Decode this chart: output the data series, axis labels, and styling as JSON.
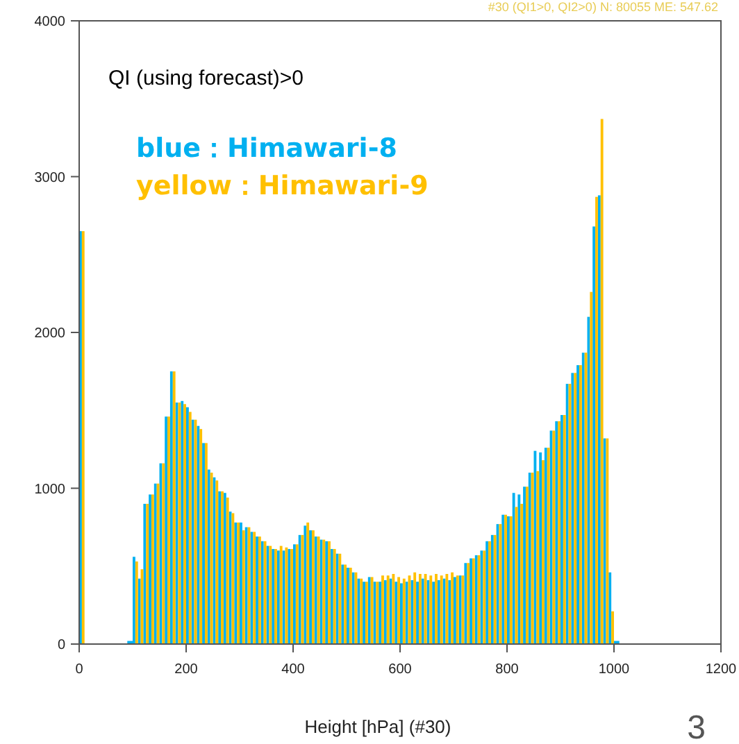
{
  "chart_data": {
    "type": "histogram",
    "xlabel": "Height [hPa] (#30)",
    "annotations": [
      "QI (using forecast)>0",
      "#30 (QI1>0, QI2>0) N: 80055 ME: 547.62",
      "3"
    ],
    "bins": [
      0,
      10,
      20,
      30,
      40,
      50,
      60,
      70,
      80,
      90,
      100,
      110,
      120,
      130,
      140,
      150,
      160,
      170,
      180,
      190,
      200,
      210,
      220,
      230,
      240,
      250,
      260,
      270,
      280,
      290,
      300,
      310,
      320,
      330,
      340,
      350,
      360,
      370,
      380,
      390,
      400,
      410,
      420,
      430,
      440,
      450,
      460,
      470,
      480,
      490,
      500,
      510,
      520,
      530,
      540,
      550,
      560,
      570,
      580,
      590,
      600,
      610,
      620,
      630,
      640,
      650,
      660,
      670,
      680,
      690,
      700,
      710,
      720,
      730,
      740,
      750,
      760,
      770,
      780,
      790,
      800,
      810,
      820,
      830,
      840,
      850,
      860,
      870,
      880,
      890,
      900,
      910,
      920,
      930,
      940,
      950,
      960,
      970,
      980,
      990,
      1000,
      1010
    ],
    "series": [
      {
        "name": "blue：Himawari-8",
        "color": "#00b0f0",
        "values": [
          2650,
          0,
          0,
          0,
          0,
          0,
          0,
          0,
          0,
          20,
          560,
          420,
          900,
          960,
          1030,
          1160,
          1460,
          1750,
          1550,
          1560,
          1520,
          1440,
          1400,
          1290,
          1120,
          1070,
          980,
          970,
          850,
          780,
          780,
          750,
          720,
          690,
          660,
          630,
          610,
          600,
          600,
          610,
          640,
          700,
          760,
          730,
          690,
          670,
          660,
          610,
          580,
          510,
          490,
          460,
          420,
          400,
          430,
          400,
          400,
          410,
          420,
          400,
          390,
          400,
          410,
          400,
          420,
          410,
          400,
          410,
          420,
          410,
          430,
          440,
          520,
          550,
          570,
          600,
          660,
          700,
          770,
          830,
          820,
          970,
          960,
          1010,
          1100,
          1240,
          1230,
          1260,
          1370,
          1430,
          1470,
          1670,
          1740,
          1790,
          1870,
          2100,
          2680,
          2880,
          1320,
          460,
          20
        ]
      },
      {
        "name": "yellow：Himawari-9",
        "color": "#ffc000",
        "values": [
          2650,
          0,
          0,
          0,
          0,
          0,
          0,
          0,
          0,
          0,
          530,
          480,
          900,
          960,
          1030,
          1160,
          1460,
          1750,
          1550,
          1540,
          1490,
          1440,
          1380,
          1290,
          1100,
          1050,
          980,
          940,
          840,
          780,
          730,
          750,
          720,
          690,
          660,
          630,
          610,
          630,
          620,
          610,
          640,
          700,
          780,
          730,
          690,
          670,
          660,
          610,
          580,
          510,
          490,
          460,
          420,
          400,
          430,
          400,
          440,
          440,
          450,
          430,
          420,
          440,
          460,
          450,
          450,
          440,
          450,
          440,
          450,
          460,
          440,
          440,
          520,
          550,
          570,
          600,
          660,
          700,
          770,
          830,
          820,
          880,
          900,
          1010,
          1100,
          1110,
          1180,
          1260,
          1370,
          1430,
          1470,
          1670,
          1740,
          1790,
          1870,
          2260,
          2870,
          3370,
          1320,
          210,
          0
        ]
      }
    ],
    "xlim": [
      0,
      1200
    ],
    "xticks": [
      0,
      200,
      400,
      600,
      800,
      1000,
      1200
    ],
    "ylim": [
      0,
      4000
    ],
    "yticks": [
      0,
      1000,
      2000,
      3000,
      4000
    ],
    "legend": "top left"
  }
}
